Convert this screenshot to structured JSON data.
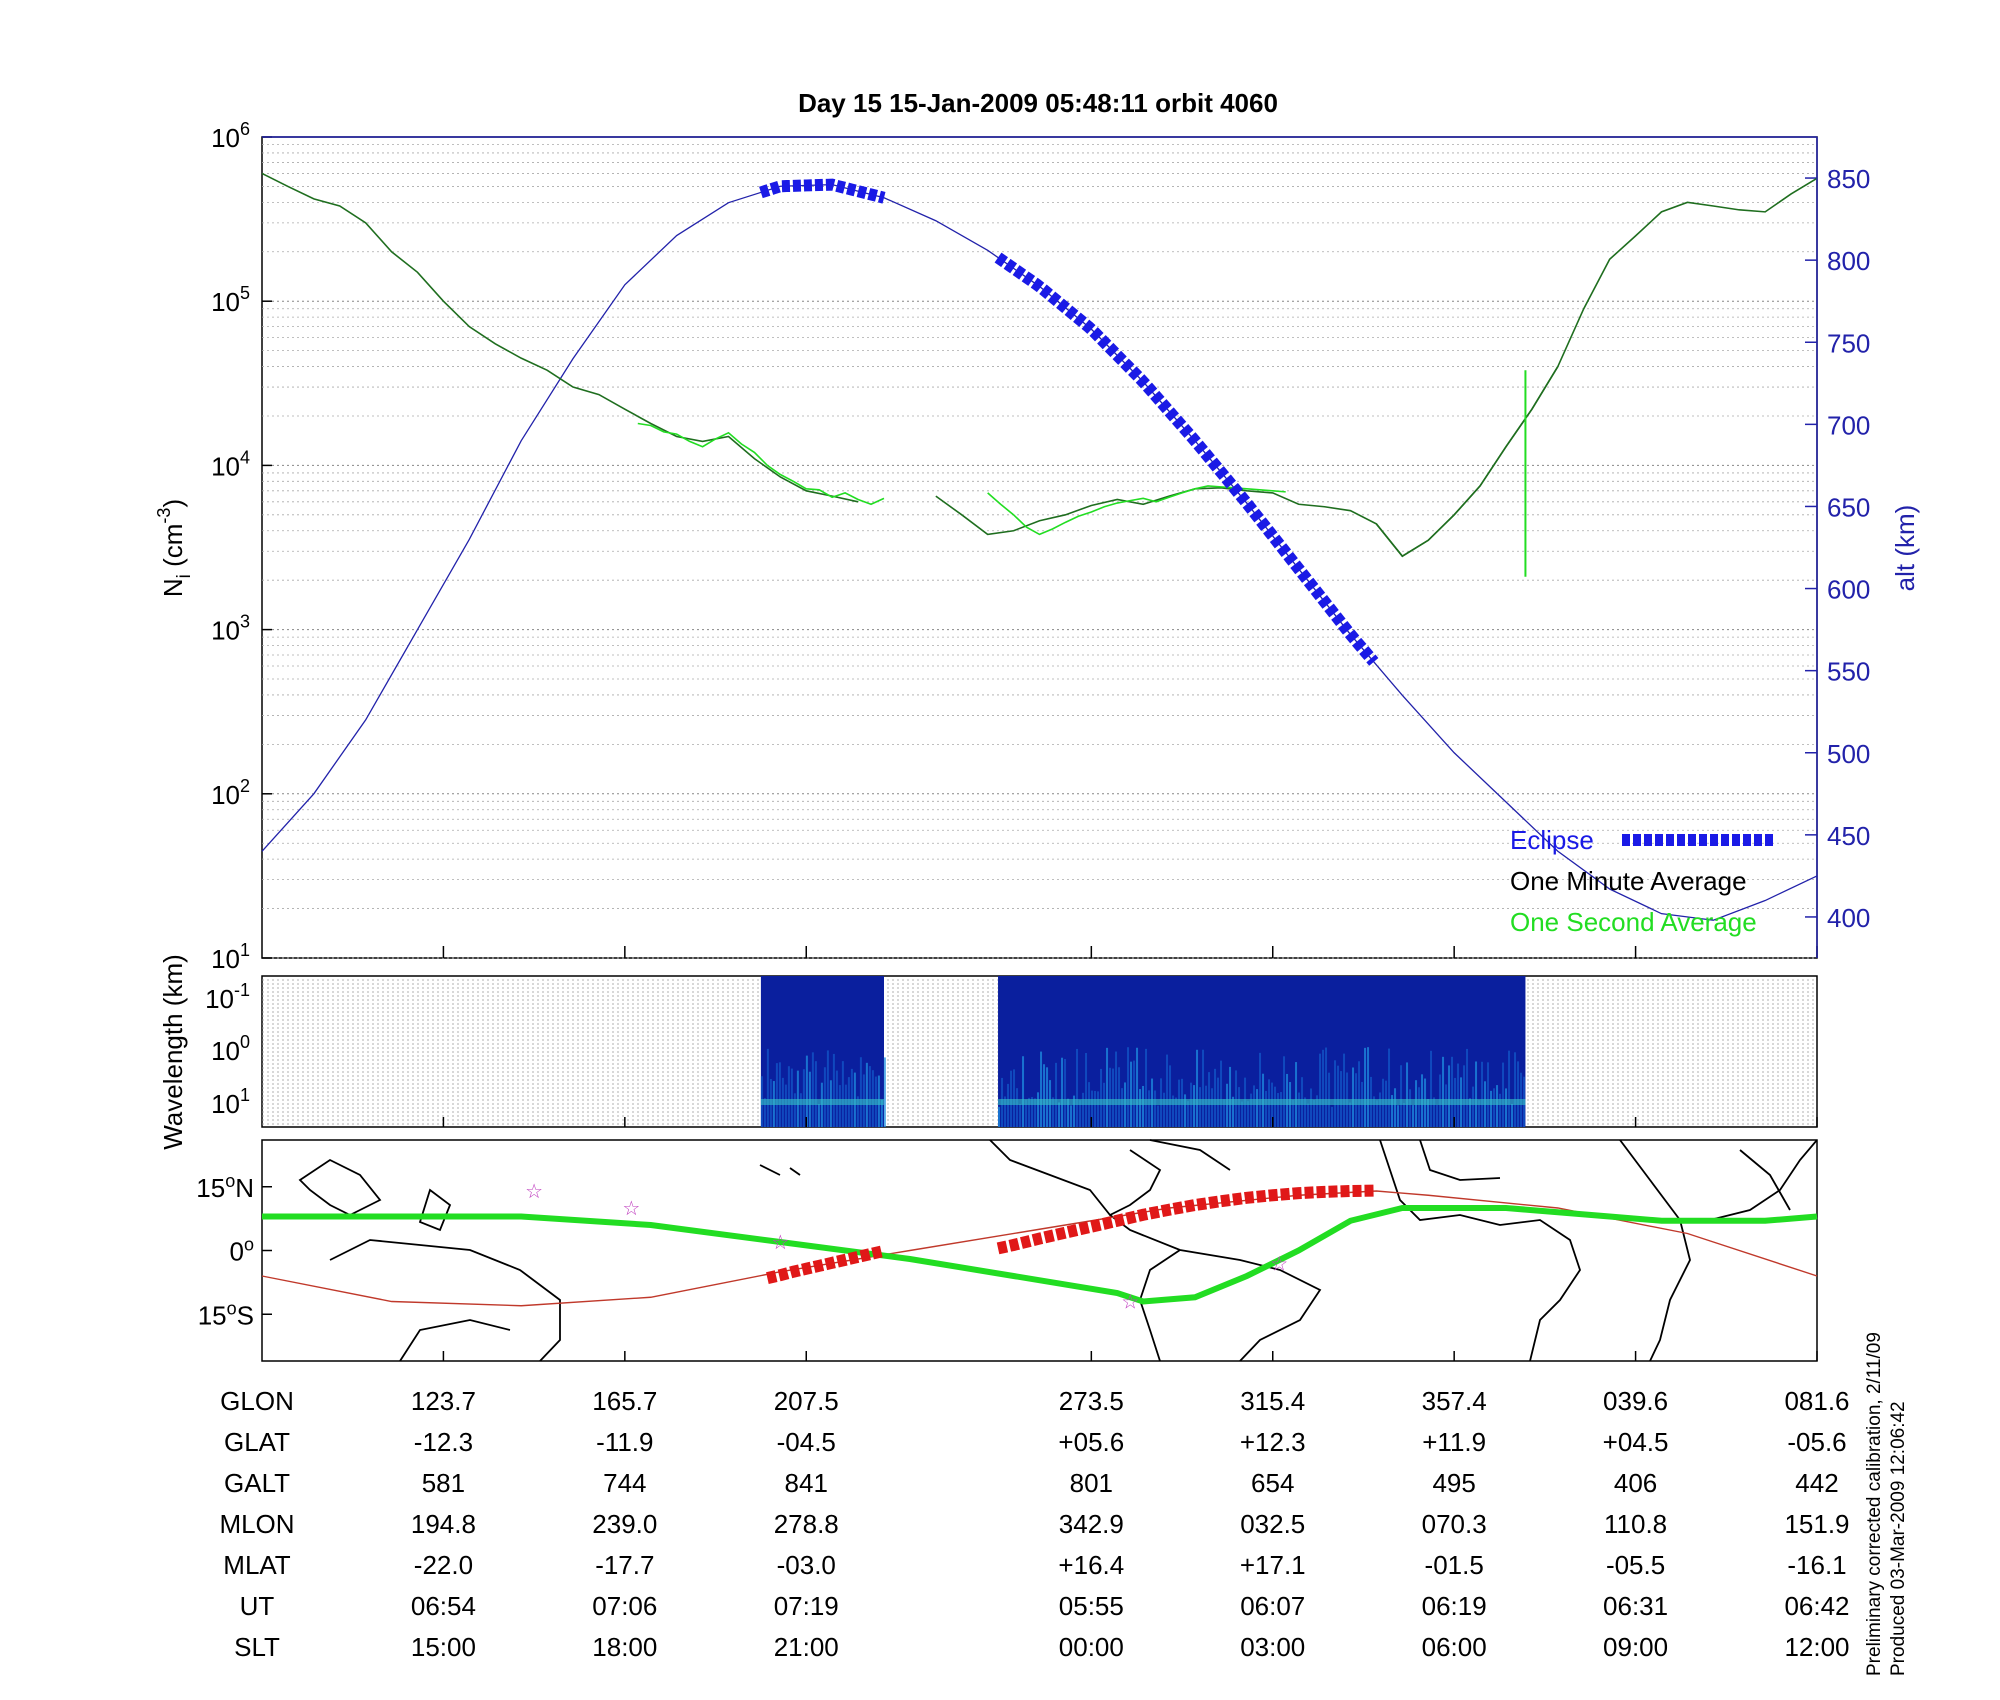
{
  "chart_data": [
    {
      "type": "line",
      "title": "Day 15  15-Jan-2009 05:48:11   orbit 4060",
      "ylabel": "N",
      "ylabel_sub": "i",
      "ylabel_unit": "(cm",
      "ylabel_unit_exp": "-3",
      "ylabel_unit_close": ")",
      "yscale": "log",
      "ylim": [
        10,
        1000000
      ],
      "ytick_labels": [
        {
          "base": "10",
          "exp": "1",
          "value": 10
        },
        {
          "base": "10",
          "exp": "2",
          "value": 100
        },
        {
          "base": "10",
          "exp": "3",
          "value": 1000
        },
        {
          "base": "10",
          "exp": "4",
          "value": 10000
        },
        {
          "base": "10",
          "exp": "5",
          "value": 100000
        },
        {
          "base": "10",
          "exp": "6",
          "value": 1000000
        }
      ],
      "y2label": "alt (km)",
      "y2lim": [
        375,
        875
      ],
      "y2ticks": [
        "400",
        "450",
        "500",
        "550",
        "600",
        "650",
        "700",
        "750",
        "800",
        "850"
      ],
      "grid": true,
      "legend_position": "bottom-right",
      "legend": [
        {
          "label": "Eclipse",
          "color": "#1a1ae6"
        },
        {
          "label": "One Minute Average",
          "color": "#000000"
        },
        {
          "label": "One Second Average",
          "color": "#22dd22"
        }
      ],
      "series": [
        {
          "name": "One Minute Average",
          "color": "#1f6e1f",
          "x": [
            0,
            2,
            4,
            6,
            8,
            10,
            12,
            14,
            16,
            18,
            20,
            22,
            24,
            26,
            28,
            30,
            32,
            34,
            36,
            38,
            40,
            42,
            44,
            46,
            48,
            50,
            52,
            54,
            56,
            58,
            60,
            62,
            64,
            66,
            68,
            70,
            72,
            74,
            76,
            78,
            80,
            82,
            84,
            86,
            88,
            90,
            92,
            94,
            96,
            98,
            100
          ],
          "y": [
            600000,
            500000,
            420000,
            380000,
            300000,
            200000,
            150000,
            100000,
            70000,
            55000,
            45000,
            38000,
            30000,
            27000,
            22000,
            18000,
            15000,
            14000,
            15000,
            11000,
            8500,
            7000,
            6500,
            6000,
            null,
            null,
            6500,
            5000,
            3800,
            4000,
            4600,
            5000,
            5700,
            6200,
            5800,
            6500,
            7200,
            7300,
            7000,
            6800,
            5800,
            5600,
            5300,
            4400,
            2800,
            3500,
            5000,
            7500,
            13000,
            22000,
            40000
          ]
        },
        {
          "name": "One Minute Average (cont.)",
          "color": "#1f6e1f",
          "x": [
            86,
            88,
            90,
            92,
            94,
            96,
            98,
            100,
            102,
            104,
            106,
            108,
            110,
            112,
            114,
            116,
            118,
            120
          ],
          "y": [
            4400,
            2800,
            3500,
            5000,
            7500,
            13000,
            22000,
            40000,
            90000,
            180000,
            250000,
            350000,
            400000,
            380000,
            360000,
            350000,
            450000,
            560000
          ]
        },
        {
          "name": "One Second Average",
          "color": "#22dd22",
          "x": [
            29,
            30,
            31,
            32,
            33,
            34,
            35,
            36,
            37,
            38,
            39,
            40,
            41,
            42,
            43,
            44,
            45,
            46,
            47,
            48
          ],
          "y": [
            18000,
            17500,
            16000,
            15500,
            14000,
            13000,
            14500,
            15800,
            13500,
            12000,
            10000,
            8800,
            8000,
            7200,
            7100,
            6400,
            6800,
            6200,
            5800,
            6300
          ]
        },
        {
          "name": "One Second Average (2)",
          "color": "#22dd22",
          "x": [
            56,
            57,
            58,
            59,
            60,
            61,
            62,
            63,
            64,
            65,
            66,
            67,
            68,
            69,
            70,
            71,
            72,
            73,
            74,
            75,
            76,
            77,
            78,
            79
          ],
          "y": [
            6800,
            5800,
            5000,
            4200,
            3800,
            4100,
            4500,
            4900,
            5200,
            5600,
            5900,
            6100,
            6300,
            6000,
            6400,
            6800,
            7200,
            7500,
            7400,
            7300,
            7200,
            7100,
            7000,
            6900
          ]
        }
      ],
      "spike": {
        "name": "One Second Average spike",
        "x": 97.5,
        "y_top": 38000,
        "y_bottom": 2100
      },
      "altitude": {
        "name": "alt",
        "color": "#2222aa",
        "x": [
          0,
          4,
          8,
          12,
          16,
          20,
          24,
          28,
          32,
          36,
          40,
          44,
          48,
          52,
          56,
          60,
          64,
          68,
          72,
          76,
          80,
          84,
          88,
          92,
          96,
          100,
          104,
          108,
          112,
          116,
          120
        ],
        "y": [
          440,
          475,
          520,
          575,
          630,
          690,
          740,
          785,
          815,
          835,
          845,
          846,
          838,
          824,
          806,
          784,
          758,
          726,
          690,
          652,
          612,
          572,
          535,
          500,
          470,
          440,
          417,
          402,
          398,
          410,
          425
        ]
      },
      "eclipse_segments": [
        {
          "name": "eclipse-1",
          "x_start": 38.5,
          "x_end": 48
        },
        {
          "name": "eclipse-2",
          "x_start": 56.8,
          "x_end": 86
        }
      ]
    },
    {
      "type": "heatmap",
      "ylabel": "Wavelength (km)",
      "ytick_labels": [
        {
          "base": "10",
          "exp": "-1"
        },
        {
          "base": "10",
          "exp": "0"
        },
        {
          "base": "10",
          "exp": "1"
        }
      ],
      "blocks": [
        {
          "name": "spectrogram-block-1",
          "x_start": 38.5,
          "x_end": 48
        },
        {
          "name": "spectrogram-block-2",
          "x_start": 56.8,
          "x_end": 97.5
        }
      ]
    },
    {
      "type": "map",
      "ytick_labels": [
        {
          "deg": "15",
          "unit": "o",
          "hemi": "N",
          "value": 15
        },
        {
          "deg": "0",
          "unit": "o",
          "hemi": "",
          "value": 0
        },
        {
          "deg": "15",
          "unit": "o",
          "hemi": "S",
          "value": -15
        }
      ],
      "ylim": [
        -26,
        26
      ],
      "magnetic_track": {
        "color": "#22dd22",
        "x": [
          0,
          10,
          20,
          30,
          40,
          50,
          58,
          66,
          68,
          72,
          76,
          80,
          84,
          88,
          92,
          96,
          100,
          104,
          108,
          112,
          116,
          120
        ],
        "y": [
          8,
          8,
          8,
          6,
          2,
          -2,
          -6,
          -10,
          -12,
          -11,
          -6,
          0,
          7,
          10,
          10,
          10,
          9,
          8,
          7,
          7,
          7,
          8
        ]
      },
      "geo_track": {
        "color": "#c0392b",
        "x": [
          0,
          10,
          20,
          30,
          40,
          50,
          60,
          70,
          80,
          86,
          90,
          100,
          110,
          120
        ],
        "y": [
          -6,
          -12,
          -13,
          -11,
          -5,
          0,
          5,
          10,
          13,
          14,
          13,
          10,
          4,
          -6
        ]
      },
      "eclipse_segments": [
        {
          "name": "map-eclipse-1",
          "x": [
            39,
            40,
            41,
            42,
            43,
            44,
            45,
            46,
            47,
            48
          ],
          "y": [
            -6.5,
            -5.8,
            -5,
            -4.3,
            -3.6,
            -2.9,
            -2.2,
            -1.5,
            -0.8,
            -0.1
          ]
        },
        {
          "name": "map-eclipse-2",
          "x": [
            56.8,
            58,
            60,
            62,
            64,
            66,
            68,
            70,
            72,
            74,
            76,
            78,
            80,
            82,
            84,
            86
          ],
          "y": [
            0.5,
            1.3,
            2.8,
            4.2,
            5.6,
            7,
            8.4,
            9.6,
            10.7,
            11.6,
            12.4,
            13,
            13.5,
            13.8,
            14,
            14.1
          ]
        }
      ],
      "stars": [
        {
          "x": 21,
          "y": 14
        },
        {
          "x": 28.5,
          "y": 10
        },
        {
          "x": 40,
          "y": 2
        },
        {
          "x": 67,
          "y": -12
        },
        {
          "x": 78.5,
          "y": -3
        }
      ]
    }
  ],
  "table": {
    "headers": [
      "GLON",
      "GLAT",
      "GALT",
      "MLON",
      "MLAT",
      "UT",
      "SLT"
    ],
    "columns": [
      {
        "x": 14,
        "values": [
          "123.7",
          "-12.3",
          "581",
          "194.8",
          "-22.0",
          "06:54",
          "15:00"
        ]
      },
      {
        "x": 28,
        "values": [
          "165.7",
          "-11.9",
          "744",
          "239.0",
          "-17.7",
          "07:06",
          "18:00"
        ]
      },
      {
        "x": 42,
        "values": [
          "207.5",
          "-04.5",
          "841",
          "278.8",
          "-03.0",
          "07:19",
          "21:00"
        ]
      },
      {
        "x": 64,
        "values": [
          "273.5",
          "+05.6",
          "801",
          "342.9",
          "+16.4",
          "05:55",
          "00:00"
        ]
      },
      {
        "x": 78,
        "values": [
          "315.4",
          "+12.3",
          "654",
          "032.5",
          "+17.1",
          "06:07",
          "03:00"
        ]
      },
      {
        "x": 92,
        "values": [
          "357.4",
          "+11.9",
          "495",
          "070.3",
          "-01.5",
          "06:19",
          "06:00"
        ]
      },
      {
        "x": 106,
        "values": [
          "039.6",
          "+04.5",
          "406",
          "110.8",
          "-05.5",
          "06:31",
          "09:00"
        ]
      },
      {
        "x": 120,
        "values": [
          "081.6",
          "-05.6",
          "442",
          "151.9",
          "-16.1",
          "06:42",
          "12:00"
        ]
      }
    ]
  },
  "footer": {
    "line1": "Preliminary corrected calibration, 2/11/09",
    "line2": "Produced 03-Mar-2009 12:06:42"
  }
}
